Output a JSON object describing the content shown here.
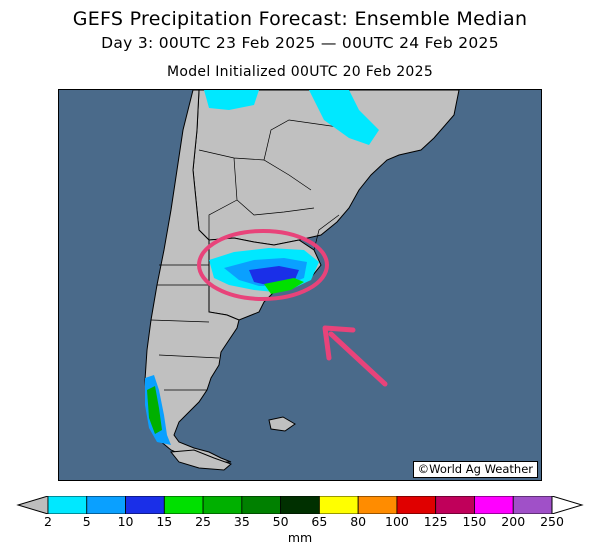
{
  "header": {
    "title": "GEFS Precipitation Forecast: Ensemble Median",
    "period": "Day 3: 00UTC 23 Feb 2025 — 00UTC 24 Feb 2025",
    "init": "Model Initialized 00UTC 20 Feb 2025"
  },
  "map": {
    "region": "southern-south-america",
    "credit": "©World Ag Weather",
    "ocean_color": "#4a6a8a",
    "land_color": "#c0c0c0",
    "highlight_color": "#e8437a"
  },
  "legend": {
    "unit": "mm",
    "ticks": [
      "2",
      "5",
      "10",
      "15",
      "25",
      "35",
      "50",
      "65",
      "80",
      "100",
      "125",
      "150",
      "200",
      "250"
    ],
    "colors": [
      "#00e8ff",
      "#0aa0ff",
      "#1a2fe8",
      "#00e000",
      "#00b000",
      "#008000",
      "#003000",
      "#ffff00",
      "#ff8c00",
      "#e00000",
      "#c0005a",
      "#ff00ff",
      "#a050c8"
    ]
  }
}
